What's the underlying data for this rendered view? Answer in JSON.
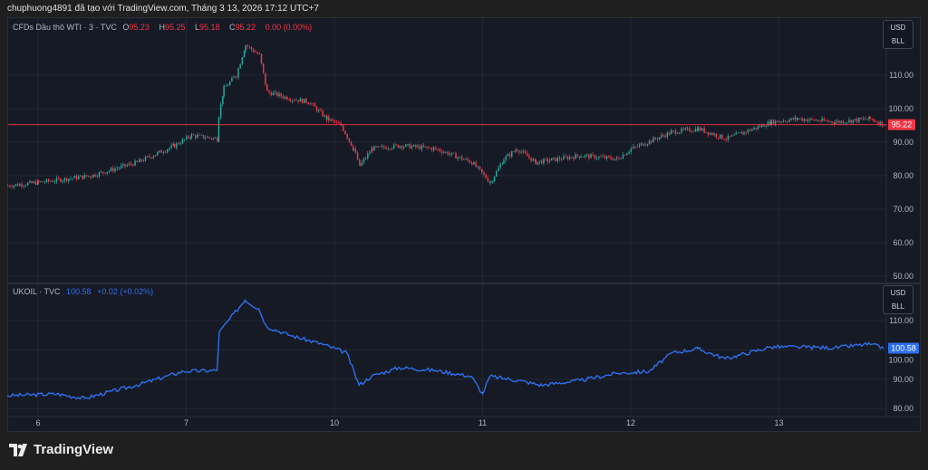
{
  "caption": "chuphuong4891 đã tạo với TradingView.com, Tháng 3 13, 2026 17:12 UTC+7",
  "branding": "TradingView",
  "colors": {
    "up": "#26a69a",
    "down": "#f23645",
    "ukoil": "#2f6fec",
    "bg": "#161a25",
    "grid": "#232734",
    "axis_text": "#b2b5be"
  },
  "chart_data": [
    {
      "type": "candlestick",
      "symbol_label": "CFDs Dầu thô WTI · 3 · TVC",
      "ohlc": {
        "o_label": "O",
        "o": "95.23",
        "h_label": "H",
        "h": "95.25",
        "l_label": "L",
        "l": "95.18",
        "c_label": "C",
        "c": "95.22",
        "change": "0.00 (0.00%)"
      },
      "last_price": "95.22",
      "currency": "USD",
      "unit": "BLL",
      "ylim": [
        48,
        125
      ],
      "y_ticks": [
        "110.00",
        "100.00",
        "90.00",
        "80.00",
        "70.00",
        "60.00",
        "50.00"
      ],
      "grid": true,
      "points": [
        [
          "5 19:00",
          77
        ],
        [
          "6 00:00",
          78
        ],
        [
          "6 08:30",
          80
        ],
        [
          "6 16:00",
          84
        ],
        [
          "6 22:00",
          89
        ],
        [
          "7 00:45",
          92
        ],
        [
          "7 05:00",
          91
        ],
        [
          "7 05:10",
          98
        ],
        [
          "7 06:00",
          106
        ],
        [
          "7 08:00",
          110
        ],
        [
          "7 09:30",
          119
        ],
        [
          "7 11:45",
          116
        ],
        [
          "7 13:00",
          105
        ],
        [
          "7 16:45",
          103
        ],
        [
          "7 19:45",
          102
        ],
        [
          "7 22:40",
          97
        ],
        [
          "10 01:00",
          95
        ],
        [
          "10 03:00",
          88
        ],
        [
          "10 04:00",
          83
        ],
        [
          "10 06:00",
          88
        ],
        [
          "10 10:30",
          89
        ],
        [
          "10 16:20",
          88
        ],
        [
          "10 22:10",
          84
        ],
        [
          "11 01:10",
          78
        ],
        [
          "11 03:20",
          85
        ],
        [
          "11 05:30",
          88
        ],
        [
          "11 08:30",
          84
        ],
        [
          "11 15:50",
          86
        ],
        [
          "11 21:40",
          85
        ],
        [
          "12 00:00",
          88
        ],
        [
          "12 06:30",
          93
        ],
        [
          "12 10:50",
          94
        ],
        [
          "12 15:20",
          91
        ],
        [
          "12 22:40",
          96
        ],
        [
          "13 03:00",
          97
        ],
        [
          "13 09:00",
          96
        ],
        [
          "13 14:40",
          97
        ],
        [
          "13 17:00",
          95.22
        ]
      ]
    },
    {
      "type": "line",
      "symbol_label": "UKOIL · TVC",
      "last": "100.58",
      "change": "+0.02 (+0.02%)",
      "last_price": "100.58",
      "currency": "USD",
      "unit": "BLL",
      "ylim": [
        78,
        122
      ],
      "y_ticks": [
        "110.00",
        "100.00",
        "90.00",
        "80.00"
      ],
      "grid": true,
      "points": [
        [
          "5 19:00",
          84.4
        ],
        [
          "6 03:00",
          85
        ],
        [
          "6 07:30",
          83.5
        ],
        [
          "6 16:00",
          88
        ],
        [
          "6 23:30",
          92.7
        ],
        [
          "7 05:00",
          93
        ],
        [
          "7 05:20",
          106
        ],
        [
          "7 09:30",
          117
        ],
        [
          "7 11:45",
          114
        ],
        [
          "7 13:00",
          108
        ],
        [
          "7 16:45",
          105
        ],
        [
          "7 22:00",
          102
        ],
        [
          "10 02:00",
          99
        ],
        [
          "10 04:00",
          88
        ],
        [
          "10 06:00",
          91
        ],
        [
          "10 10:30",
          94
        ],
        [
          "10 16:20",
          93
        ],
        [
          "10 22:10",
          91
        ],
        [
          "11 00:00",
          85
        ],
        [
          "11 01:10",
          91
        ],
        [
          "11 05:40",
          89.6
        ],
        [
          "11 09:30",
          88
        ],
        [
          "11 15:50",
          89.6
        ],
        [
          "11 21:40",
          92
        ],
        [
          "12 03:00",
          92.7
        ],
        [
          "12 06:40",
          99
        ],
        [
          "12 10:50",
          100.4
        ],
        [
          "12 15:20",
          97
        ],
        [
          "12 22:40",
          101
        ],
        [
          "13 03:00",
          101
        ],
        [
          "13 09:00",
          100.7
        ],
        [
          "13 14:40",
          102
        ],
        [
          "13 17:00",
          100.58
        ]
      ]
    }
  ],
  "x_axis": {
    "ticks": [
      "6",
      "7",
      "10",
      "11",
      "12",
      "13"
    ]
  }
}
